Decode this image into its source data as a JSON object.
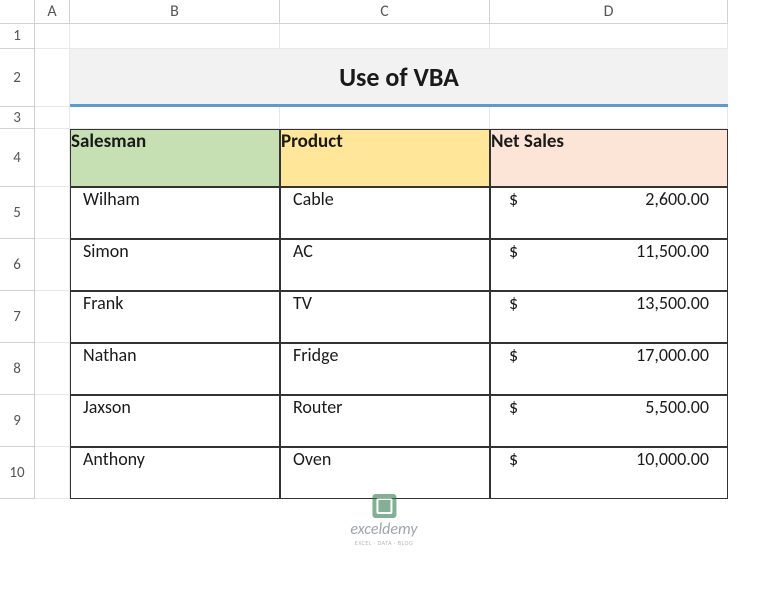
{
  "columns": [
    "A",
    "B",
    "C",
    "D"
  ],
  "rowNumbers": [
    "1",
    "2",
    "3",
    "4",
    "5",
    "6",
    "7",
    "8",
    "9",
    "10"
  ],
  "title": "Use of VBA",
  "table": {
    "headers": {
      "salesman": "Salesman",
      "product": "Product",
      "netsales": "Net Sales"
    },
    "headerColors": {
      "salesman": "#c6e0b4",
      "product": "#ffe699",
      "netsales": "#fce4d6"
    },
    "rows": [
      {
        "salesman": "Wilham",
        "product": "Cable",
        "currency": "$",
        "netsales": "2,600.00"
      },
      {
        "salesman": "Simon",
        "product": "AC",
        "currency": "$",
        "netsales": "11,500.00"
      },
      {
        "salesman": "Frank",
        "product": "TV",
        "currency": "$",
        "netsales": "13,500.00"
      },
      {
        "salesman": "Nathan",
        "product": "Fridge",
        "currency": "$",
        "netsales": "17,000.00"
      },
      {
        "salesman": "Jaxson",
        "product": "Router",
        "currency": "$",
        "netsales": "5,500.00"
      },
      {
        "salesman": "Anthony",
        "product": "Oven",
        "currency": "$",
        "netsales": "10,000.00"
      }
    ]
  },
  "watermark": {
    "text": "exceldemy",
    "sub": "EXCEL · DATA · BLOG"
  },
  "colors": {
    "titleBg": "#f2f2f2",
    "titleBorder": "#5b9bd5",
    "cellBorder": "#333333",
    "gridBorder": "#e8e8e8"
  }
}
